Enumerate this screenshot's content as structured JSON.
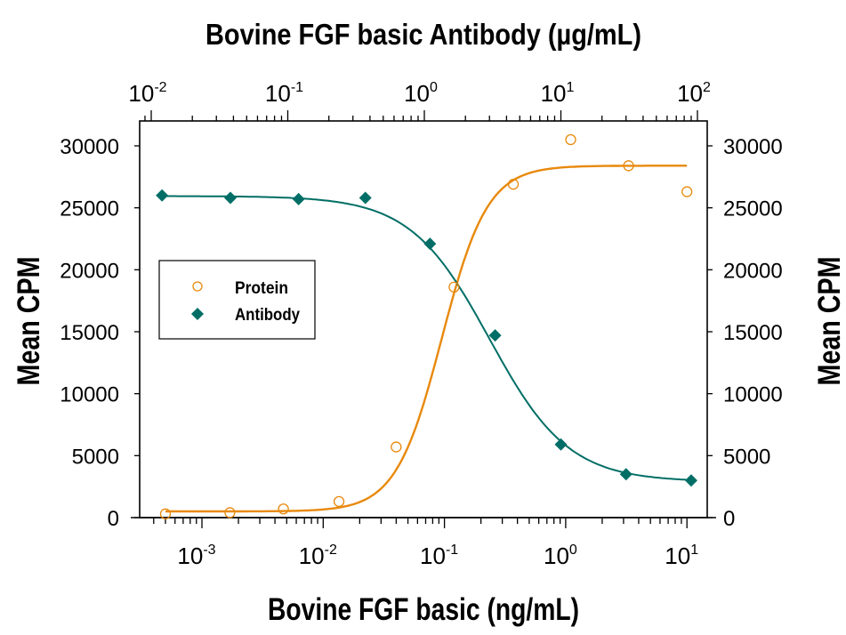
{
  "chart_data": {
    "type": "scatter",
    "title": "",
    "top_xlabel": "Bovine FGF basic Antibody (µg/mL)",
    "xlabel": "Bovine FGF basic (ng/mL)",
    "ylabel": "Mean CPM",
    "ylabel_right": "Mean CPM",
    "x_scale": "log",
    "x_range": [
      0.0003,
      15
    ],
    "x_ticks": [
      {
        "exp": "-3",
        "value": 0.001
      },
      {
        "exp": "-2",
        "value": 0.01
      },
      {
        "exp": "-1",
        "value": 0.1
      },
      {
        "exp": "0",
        "value": 1
      },
      {
        "exp": "1",
        "value": 10
      }
    ],
    "top_x_scale": "log",
    "top_x_ticks": [
      {
        "exp": "-2",
        "value": 0.01
      },
      {
        "exp": "-1",
        "value": 0.1
      },
      {
        "exp": "0",
        "value": 1
      },
      {
        "exp": "1",
        "value": 10
      },
      {
        "exp": "2",
        "value": 100
      }
    ],
    "ylim": [
      0,
      32000
    ],
    "y_ticks": [
      0,
      5000,
      10000,
      15000,
      20000,
      25000,
      30000
    ],
    "grid": false,
    "legend_position": "upper-left inside",
    "series": [
      {
        "name": "Protein",
        "marker": "open-circle",
        "color": "#E8890C",
        "axis": "bottom",
        "points": [
          {
            "x": 0.0005,
            "y": 300
          },
          {
            "x": 0.0017,
            "y": 400
          },
          {
            "x": 0.0047,
            "y": 700
          },
          {
            "x": 0.0135,
            "y": 1300
          },
          {
            "x": 0.04,
            "y": 5700
          },
          {
            "x": 0.12,
            "y": 18600
          },
          {
            "x": 0.37,
            "y": 26900
          },
          {
            "x": 1.1,
            "y": 30500
          },
          {
            "x": 3.3,
            "y": 28400
          },
          {
            "x": 10,
            "y": 26300
          }
        ],
        "fit": {
          "bottom": 500,
          "top": 28400,
          "ec50": 0.095,
          "hill": 2.3
        }
      },
      {
        "name": "Antibody",
        "marker": "filled-diamond",
        "color": "#006E66",
        "axis": "top",
        "points": [
          {
            "x": 0.012,
            "y": 26000
          },
          {
            "x": 0.038,
            "y": 25800
          },
          {
            "x": 0.12,
            "y": 25700
          },
          {
            "x": 0.37,
            "y": 25800
          },
          {
            "x": 1.1,
            "y": 22100
          },
          {
            "x": 3.3,
            "y": 14700
          },
          {
            "x": 10,
            "y": 5900
          },
          {
            "x": 30,
            "y": 3500
          },
          {
            "x": 90,
            "y": 3000
          }
        ],
        "fit": {
          "bottom": 2900,
          "top": 25950,
          "ic50": 3.0,
          "hill": 1.5
        }
      }
    ]
  },
  "legend": {
    "items": [
      {
        "label": "Protein"
      },
      {
        "label": "Antibody"
      }
    ]
  },
  "axes": {
    "top_title": "Bovine FGF basic Antibody (µg/mL)",
    "bottom_title": "Bovine FGF basic (ng/mL)",
    "left_title": "Mean CPM",
    "right_title": "Mean CPM"
  },
  "colors": {
    "protein": "#E8890C",
    "antibody": "#006E66",
    "axis": "#000000"
  }
}
